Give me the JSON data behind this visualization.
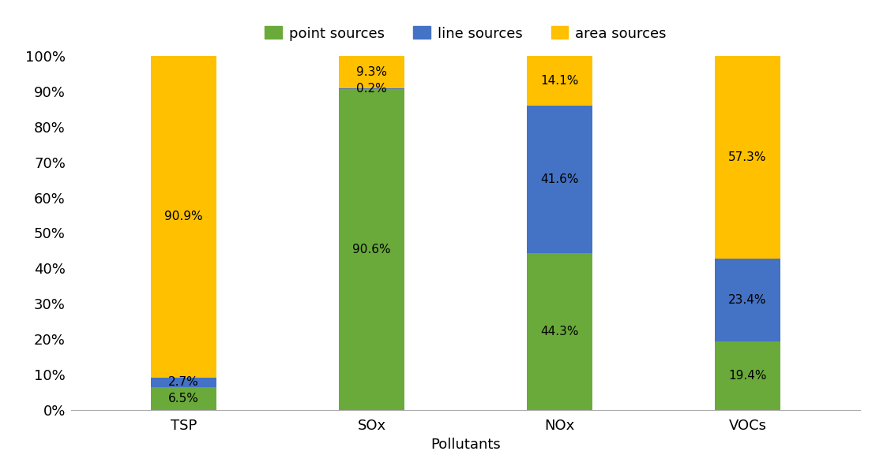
{
  "categories": [
    "TSP",
    "SOx",
    "NOx",
    "VOCs"
  ],
  "point_sources": [
    6.5,
    90.6,
    44.3,
    19.4
  ],
  "line_sources": [
    2.7,
    0.2,
    41.6,
    23.4
  ],
  "area_sources": [
    90.9,
    9.3,
    14.1,
    57.3
  ],
  "point_color": "#6aaa3a",
  "line_color": "#4472c4",
  "area_color": "#ffc000",
  "xlabel": "Pollutants",
  "ylim": [
    0,
    100
  ],
  "yticks": [
    0,
    10,
    20,
    30,
    40,
    50,
    60,
    70,
    80,
    90,
    100
  ],
  "ytick_labels": [
    "0%",
    "10%",
    "20%",
    "30%",
    "40%",
    "50%",
    "60%",
    "70%",
    "80%",
    "90%",
    "100%"
  ],
  "legend_labels": [
    "point sources",
    "line sources",
    "area sources"
  ],
  "bar_width": 0.35,
  "label_fontsize": 11,
  "tick_fontsize": 13,
  "legend_fontsize": 13,
  "xlabel_fontsize": 13,
  "background_color": "#ffffff"
}
